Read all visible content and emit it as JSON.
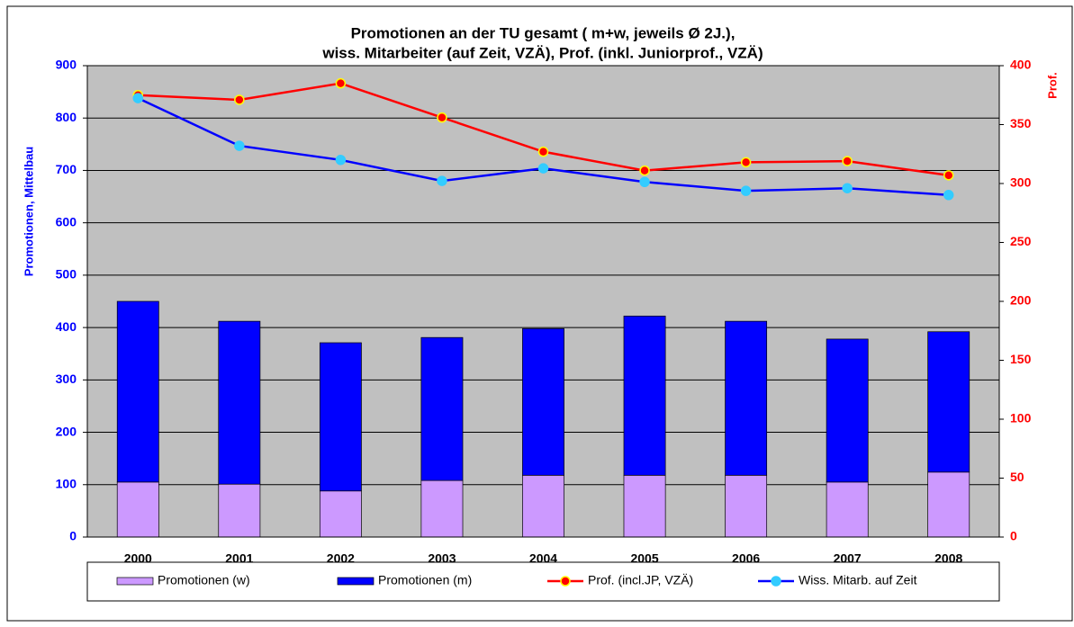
{
  "chart_data": {
    "type": "bar",
    "title": [
      "Promotionen an der TU gesamt ( m+w, jeweils Ø 2J.),",
      "wiss. Mitarbeiter (auf Zeit, VZÄ), Prof. (inkl. Juniorprof., VZÄ)"
    ],
    "y_label": "Promotionen, Mittelbau",
    "y2_label": "Prof.",
    "y_label_color": "#0000ff",
    "y2_label_color": "#ff0000",
    "categories": [
      "2000",
      "2001",
      "2002",
      "2003",
      "2004",
      "2005",
      "2006",
      "2007",
      "2008"
    ],
    "stacked": true,
    "grid": true,
    "background": "#c0c0c0",
    "legend": "bottom",
    "series": [
      {
        "name": "Promotionen (w)",
        "type": "bar",
        "color": "#cc99ff",
        "values": [
          105,
          101,
          88,
          108,
          118,
          118,
          118,
          105,
          124
        ]
      },
      {
        "name": "Promotionen (m)",
        "type": "bar",
        "color": "#0000ff",
        "values": [
          345,
          311,
          283,
          273,
          280,
          304,
          294,
          273,
          268
        ]
      },
      {
        "name": "Prof. (incl.JP, VZÄ)",
        "type": "line",
        "axis": "y2",
        "color": "#ff0000",
        "marker_color": "#ff0000",
        "marker_edge": "#ffff00",
        "values": [
          375,
          371,
          385,
          356,
          327,
          311,
          318,
          319,
          307
        ]
      },
      {
        "name": "Wiss. Mitarb. auf Zeit",
        "type": "line",
        "color": "#0000ff",
        "marker_color": "#33ccff",
        "marker_edge": "#33ccff",
        "values": [
          838,
          747,
          720,
          680,
          704,
          678,
          661,
          666,
          653
        ]
      }
    ],
    "ylim": [
      0,
      900
    ],
    "yticks": [
      0,
      100,
      200,
      300,
      400,
      500,
      600,
      700,
      800,
      900
    ],
    "y2lim": [
      0,
      400
    ],
    "y2ticks": [
      0,
      50,
      100,
      150,
      200,
      250,
      300,
      350,
      400
    ]
  }
}
